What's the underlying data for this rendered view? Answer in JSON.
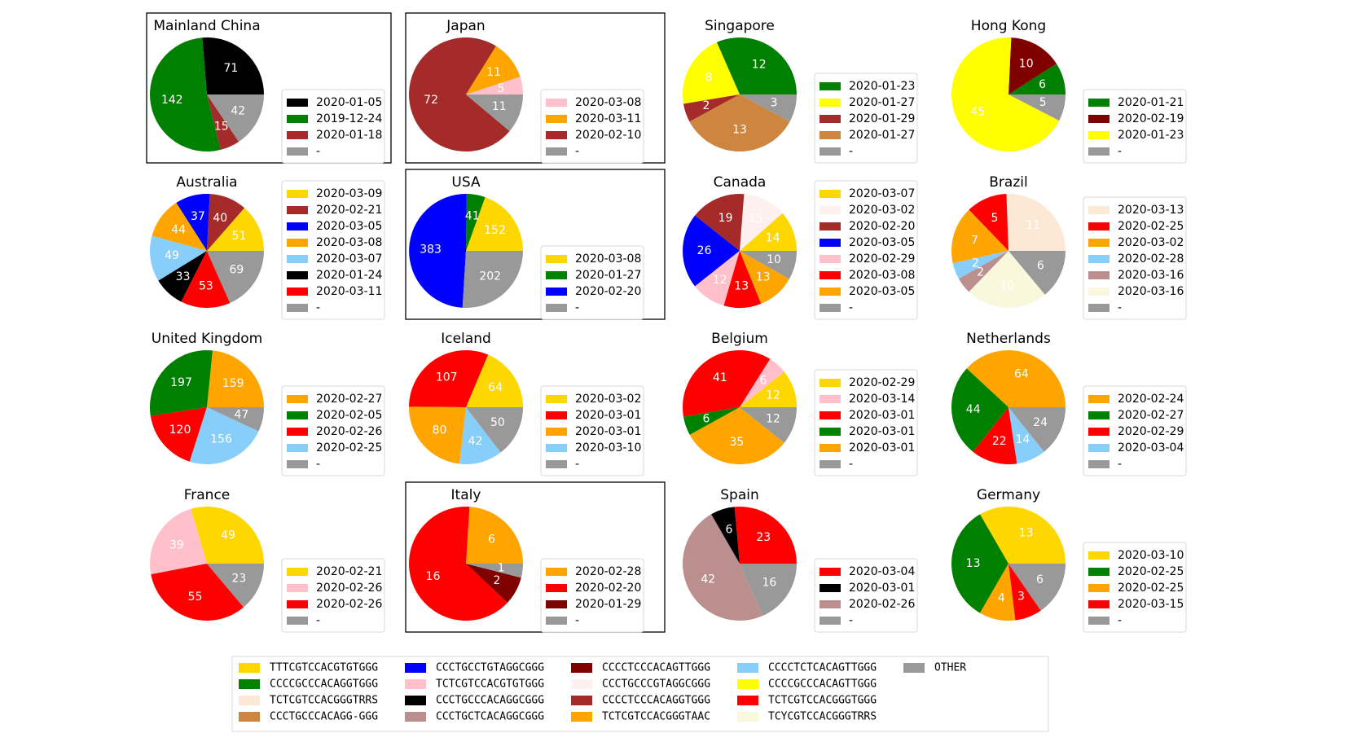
{
  "chart_data": {
    "type": "pie",
    "sequence_key": [
      {
        "code": "TTTCGTCCACGTGTGGG",
        "color": "#FFD700"
      },
      {
        "code": "CCCCGCCCACAGGTGGG",
        "color": "#008000"
      },
      {
        "code": "TCTCGTCCACGGGTRRS",
        "color": "#FDE8D6"
      },
      {
        "code": "CCCTGCCCACAGG-GGG",
        "color": "#CD853F"
      },
      {
        "code": "CCCTGCCTGTAGGCGGG",
        "color": "#0000FF"
      },
      {
        "code": "TCTCGTCCACGTGTGGG",
        "color": "#FFC0CB"
      },
      {
        "code": "CCCTGCCCACAGGCGGG",
        "color": "#000000"
      },
      {
        "code": "CCCTGCTCACAGGCGGG",
        "color": "#BC8F8F"
      },
      {
        "code": "CCCCTCCCACAGTTGGG",
        "color": "#800000"
      },
      {
        "code": "CCCTGCCCGTAGGCGGG",
        "color": "#FFF0F0"
      },
      {
        "code": "CCCCTCCCACAGGTGGG",
        "color": "#A52A2A"
      },
      {
        "code": "TCTCGTCCACGGGTAAC",
        "color": "#FFA500"
      },
      {
        "code": "CCCCTCTCACAGTTGGG",
        "color": "#87CEFA"
      },
      {
        "code": "CCCCGCCCACAGTTGGG",
        "color": "#FFFF00"
      },
      {
        "code": "TCTCGTCCACGGGTGGG",
        "color": "#FF0000"
      },
      {
        "code": "TCYCGTCCACGGGTRRS",
        "color": "#FAF8DC"
      },
      {
        "code": "OTHER",
        "color": "#999999"
      }
    ],
    "panels": [
      {
        "title": "Mainland China",
        "framed": true,
        "slices": [
          {
            "value": 71,
            "label": "71",
            "date": "2020-01-05",
            "color": "#000000"
          },
          {
            "value": 142,
            "label": "142",
            "date": "2019-12-24",
            "color": "#008000"
          },
          {
            "value": 15,
            "label": "15",
            "date": "2020-01-18",
            "color": "#A52A2A"
          },
          {
            "value": 42,
            "label": "42",
            "date": "-",
            "color": "#999999"
          }
        ]
      },
      {
        "title": "Japan",
        "framed": true,
        "slices": [
          {
            "value": 5,
            "label": "5",
            "date": "2020-03-08",
            "color": "#FFC0CB"
          },
          {
            "value": 11,
            "label": "11",
            "date": "2020-03-11",
            "color": "#FFA500"
          },
          {
            "value": 72,
            "label": "72",
            "date": "2020-02-10",
            "color": "#A52A2A"
          },
          {
            "value": 11,
            "label": "11",
            "date": "-",
            "color": "#999999"
          }
        ]
      },
      {
        "title": "Singapore",
        "framed": false,
        "slices": [
          {
            "value": 12,
            "label": "12",
            "date": "2020-01-23",
            "color": "#008000"
          },
          {
            "value": 8,
            "label": "8",
            "date": "2020-01-27",
            "color": "#FFFF00"
          },
          {
            "value": 2,
            "label": "2",
            "date": "2020-01-29",
            "color": "#A52A2A"
          },
          {
            "value": 13,
            "label": "13",
            "date": "2020-01-27",
            "color": "#CD853F"
          },
          {
            "value": 3,
            "label": "3",
            "date": "-",
            "color": "#999999"
          }
        ]
      },
      {
        "title": "Hong Kong",
        "framed": false,
        "slices": [
          {
            "value": 6,
            "label": "6",
            "date": "2020-01-21",
            "color": "#008000"
          },
          {
            "value": 10,
            "label": "10",
            "date": "2020-02-19",
            "color": "#800000"
          },
          {
            "value": 45,
            "label": "45",
            "date": "2020-01-23",
            "color": "#FFFF00"
          },
          {
            "value": 5,
            "label": "5",
            "date": "-",
            "color": "#999999"
          }
        ]
      },
      {
        "title": "Australia",
        "framed": false,
        "slices": [
          {
            "value": 51,
            "label": "51",
            "date": "2020-03-09",
            "color": "#FFD700"
          },
          {
            "value": 40,
            "label": "40",
            "date": "2020-02-21",
            "color": "#A52A2A"
          },
          {
            "value": 37,
            "label": "37",
            "date": "2020-03-05",
            "color": "#0000FF"
          },
          {
            "value": 44,
            "label": "44",
            "date": "2020-03-08",
            "color": "#FFA500"
          },
          {
            "value": 49,
            "label": "49",
            "date": "2020-03-07",
            "color": "#87CEFA"
          },
          {
            "value": 33,
            "label": "33",
            "date": "2020-01-24",
            "color": "#000000"
          },
          {
            "value": 53,
            "label": "53",
            "date": "2020-03-11",
            "color": "#FF0000"
          },
          {
            "value": 69,
            "label": "69",
            "date": "-",
            "color": "#999999"
          }
        ]
      },
      {
        "title": "USA",
        "framed": true,
        "slices": [
          {
            "value": 152,
            "label": "152",
            "date": "2020-03-08",
            "color": "#FFD700"
          },
          {
            "value": 41,
            "label": "41",
            "date": "2020-01-27",
            "color": "#008000"
          },
          {
            "value": 383,
            "label": "383",
            "date": "2020-02-20",
            "color": "#0000FF"
          },
          {
            "value": 202,
            "label": "202",
            "date": "-",
            "color": "#999999"
          }
        ]
      },
      {
        "title": "Canada",
        "framed": false,
        "slices": [
          {
            "value": 14,
            "label": "14",
            "date": "2020-03-07",
            "color": "#FFD700"
          },
          {
            "value": 15,
            "label": "15",
            "date": "2020-03-02",
            "color": "#FFF0F0"
          },
          {
            "value": 19,
            "label": "19",
            "date": "2020-02-20",
            "color": "#A52A2A"
          },
          {
            "value": 26,
            "label": "26",
            "date": "2020-03-05",
            "color": "#0000FF"
          },
          {
            "value": 12,
            "label": "12",
            "date": "2020-02-29",
            "color": "#FFC0CB"
          },
          {
            "value": 13,
            "label": "13",
            "date": "2020-03-08",
            "color": "#FF0000"
          },
          {
            "value": 13,
            "label": "13",
            "date": "2020-03-05",
            "color": "#FFA500"
          },
          {
            "value": 10,
            "label": "10",
            "date": "-",
            "color": "#999999"
          }
        ]
      },
      {
        "title": "Brazil",
        "framed": false,
        "slices": [
          {
            "value": 11,
            "label": "11",
            "date": "2020-03-13",
            "color": "#FDE8D6"
          },
          {
            "value": 5,
            "label": "5",
            "date": "2020-02-25",
            "color": "#FF0000"
          },
          {
            "value": 7,
            "label": "7",
            "date": "2020-03-02",
            "color": "#FFA500"
          },
          {
            "value": 2,
            "label": "2",
            "date": "2020-02-28",
            "color": "#87CEFA"
          },
          {
            "value": 2,
            "label": "2",
            "date": "2020-03-16",
            "color": "#BC8F8F"
          },
          {
            "value": 10,
            "label": "10",
            "date": "2020-03-16",
            "color": "#FAF8DC"
          },
          {
            "value": 6,
            "label": "6",
            "date": "-",
            "color": "#999999"
          }
        ]
      },
      {
        "title": "United Kingdom",
        "framed": false,
        "slices": [
          {
            "value": 159,
            "label": "159",
            "date": "2020-02-27",
            "color": "#FFA500"
          },
          {
            "value": 197,
            "label": "197",
            "date": "2020-02-05",
            "color": "#008000"
          },
          {
            "value": 120,
            "label": "120",
            "date": "2020-02-26",
            "color": "#FF0000"
          },
          {
            "value": 156,
            "label": "156",
            "date": "2020-02-25",
            "color": "#87CEFA"
          },
          {
            "value": 47,
            "label": "47",
            "date": "-",
            "color": "#999999"
          }
        ]
      },
      {
        "title": "Iceland",
        "framed": false,
        "slices": [
          {
            "value": 64,
            "label": "64",
            "date": "2020-03-02",
            "color": "#FFD700"
          },
          {
            "value": 107,
            "label": "107",
            "date": "2020-03-01",
            "color": "#FF0000"
          },
          {
            "value": 80,
            "label": "80",
            "date": "2020-03-01",
            "color": "#FFA500"
          },
          {
            "value": 42,
            "label": "42",
            "date": "2020-03-10",
            "color": "#87CEFA"
          },
          {
            "value": 50,
            "label": "50",
            "date": "-",
            "color": "#999999"
          }
        ]
      },
      {
        "title": "Belgium",
        "framed": false,
        "slices": [
          {
            "value": 12,
            "label": "12",
            "date": "2020-02-29",
            "color": "#FFD700"
          },
          {
            "value": 6,
            "label": "6",
            "date": "2020-03-14",
            "color": "#FFC0CB"
          },
          {
            "value": 41,
            "label": "41",
            "date": "2020-03-01",
            "color": "#FF0000"
          },
          {
            "value": 6,
            "label": "6",
            "date": "2020-03-01",
            "color": "#008000"
          },
          {
            "value": 35,
            "label": "35",
            "date": "2020-03-01",
            "color": "#FFA500"
          },
          {
            "value": 12,
            "label": "12",
            "date": "-",
            "color": "#999999"
          }
        ]
      },
      {
        "title": "Netherlands",
        "framed": false,
        "slices": [
          {
            "value": 64,
            "label": "64",
            "date": "2020-02-24",
            "color": "#FFA500"
          },
          {
            "value": 44,
            "label": "44",
            "date": "2020-02-27",
            "color": "#008000"
          },
          {
            "value": 22,
            "label": "22",
            "date": "2020-02-29",
            "color": "#FF0000"
          },
          {
            "value": 14,
            "label": "14",
            "date": "2020-03-04",
            "color": "#87CEFA"
          },
          {
            "value": 24,
            "label": "24",
            "date": "-",
            "color": "#999999"
          }
        ]
      },
      {
        "title": "France",
        "framed": false,
        "slices": [
          {
            "value": 49,
            "label": "49",
            "date": "2020-02-21",
            "color": "#FFD700"
          },
          {
            "value": 39,
            "label": "39",
            "date": "2020-02-26",
            "color": "#FFC0CB"
          },
          {
            "value": 55,
            "label": "55",
            "date": "2020-02-26",
            "color": "#FF0000"
          },
          {
            "value": 23,
            "label": "23",
            "date": "-",
            "color": "#999999"
          }
        ]
      },
      {
        "title": "Italy",
        "framed": true,
        "slices": [
          {
            "value": 6,
            "label": "6",
            "date": "2020-02-28",
            "color": "#FFA500"
          },
          {
            "value": 16,
            "label": "16",
            "date": "2020-02-20",
            "color": "#FF0000"
          },
          {
            "value": 2,
            "label": "2",
            "date": "2020-01-29",
            "color": "#800000"
          },
          {
            "value": 1,
            "label": "1",
            "date": "-",
            "color": "#999999"
          }
        ]
      },
      {
        "title": "Spain",
        "framed": false,
        "slices": [
          {
            "value": 23,
            "label": "23",
            "date": "2020-03-04",
            "color": "#FF0000"
          },
          {
            "value": 6,
            "label": "6",
            "date": "2020-03-01",
            "color": "#000000"
          },
          {
            "value": 42,
            "label": "42",
            "date": "2020-02-26",
            "color": "#BC8F8F"
          },
          {
            "value": 16,
            "label": "16",
            "date": "-",
            "color": "#999999"
          }
        ]
      },
      {
        "title": "Germany",
        "framed": false,
        "slices": [
          {
            "value": 13,
            "label": "13",
            "date": "2020-03-10",
            "color": "#FFD700"
          },
          {
            "value": 13,
            "label": "13",
            "date": "2020-02-25",
            "color": "#008000"
          },
          {
            "value": 4,
            "label": "4",
            "date": "2020-02-25",
            "color": "#FFA500"
          },
          {
            "value": 3,
            "label": "3",
            "date": "2020-03-15",
            "color": "#FF0000"
          },
          {
            "value": 6,
            "label": "6",
            "date": "-",
            "color": "#999999"
          }
        ]
      }
    ]
  }
}
